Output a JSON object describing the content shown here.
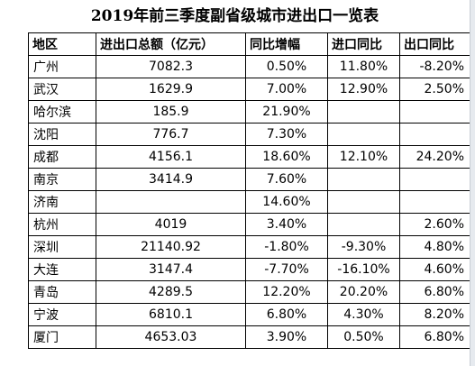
{
  "title": "2019年前三季度副省级城市进出口一览表",
  "table": {
    "headers": [
      "地区",
      "进出口总额（亿元）",
      "同比增幅",
      "进口同比",
      "出口同比"
    ],
    "rows": [
      {
        "region": "广州",
        "total": "7082.3",
        "growth": "0.50%",
        "import_yoy": "11.80%",
        "export_yoy": "-8.20%"
      },
      {
        "region": "武汉",
        "total": "1629.9",
        "growth": "7.00%",
        "import_yoy": "12.90%",
        "export_yoy": "2.50%"
      },
      {
        "region": "哈尔滨",
        "total": "185.9",
        "growth": "21.90%",
        "import_yoy": "",
        "export_yoy": ""
      },
      {
        "region": "沈阳",
        "total": "776.7",
        "growth": "7.30%",
        "import_yoy": "",
        "export_yoy": ""
      },
      {
        "region": "成都",
        "total": "4156.1",
        "growth": "18.60%",
        "import_yoy": "12.10%",
        "export_yoy": "24.20%"
      },
      {
        "region": "南京",
        "total": "3414.9",
        "growth": "7.60%",
        "import_yoy": "",
        "export_yoy": ""
      },
      {
        "region": "济南",
        "total": "",
        "growth": "14.60%",
        "import_yoy": "",
        "export_yoy": ""
      },
      {
        "region": "杭州",
        "total": "4019",
        "growth": "3.40%",
        "import_yoy": "",
        "export_yoy": "2.60%"
      },
      {
        "region": "深圳",
        "total": "21140.92",
        "growth": "-1.80%",
        "import_yoy": "-9.30%",
        "export_yoy": "4.80%"
      },
      {
        "region": "大连",
        "total": "3147.4",
        "growth": "-7.70%",
        "import_yoy": "-16.10%",
        "export_yoy": "4.60%"
      },
      {
        "region": "青岛",
        "total": "4289.5",
        "growth": "12.20%",
        "import_yoy": "20.20%",
        "export_yoy": "6.80%"
      },
      {
        "region": "宁波",
        "total": "6810.1",
        "growth": "6.80%",
        "import_yoy": "4.30%",
        "export_yoy": "8.20%"
      },
      {
        "region": "厦门",
        "total": "4653.03",
        "growth": "3.90%",
        "import_yoy": "0.50%",
        "export_yoy": "6.80%"
      }
    ]
  }
}
